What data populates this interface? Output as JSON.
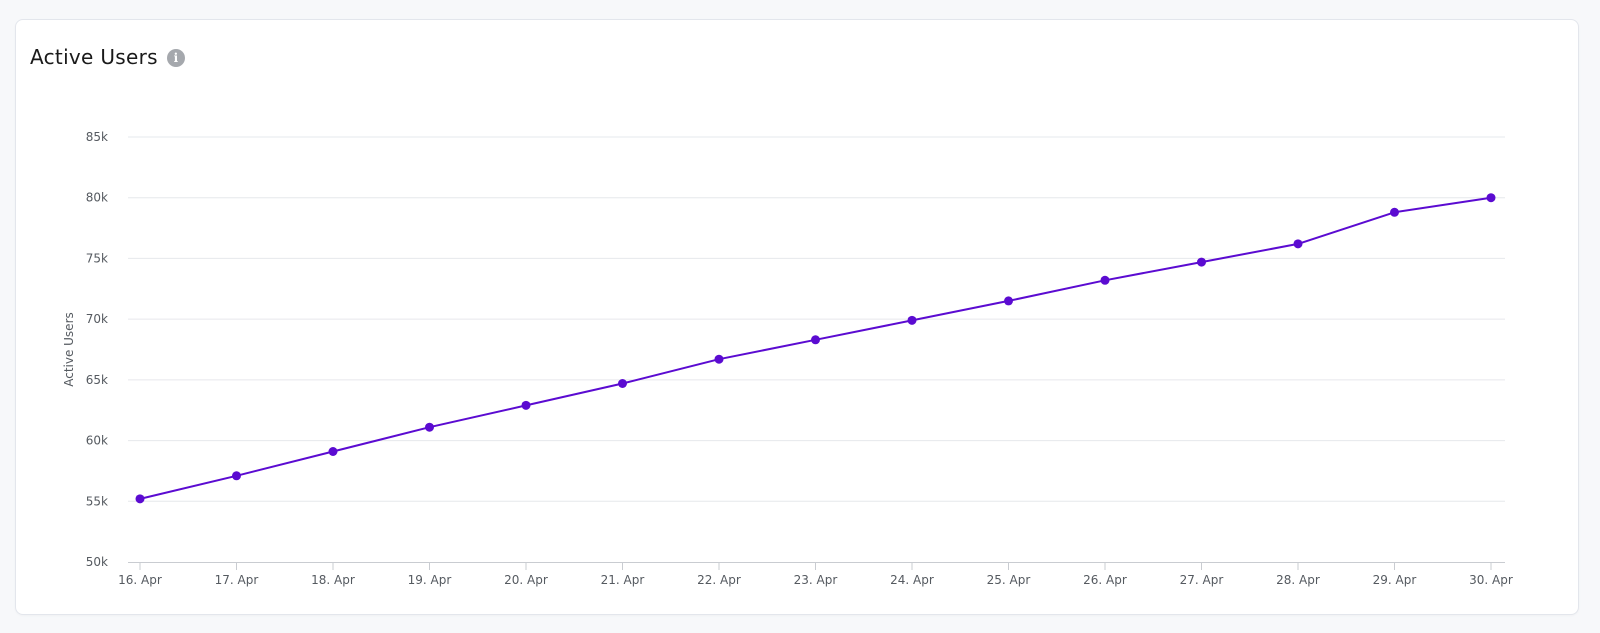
{
  "card": {
    "title": "Active Users",
    "info_icon": "info-icon"
  },
  "chart_data": {
    "type": "line",
    "title": "Active Users",
    "ylabel": "Active Users",
    "xlabel": "",
    "categories": [
      "16. Apr",
      "17. Apr",
      "18. Apr",
      "19. Apr",
      "20. Apr",
      "21. Apr",
      "22. Apr",
      "23. Apr",
      "24. Apr",
      "25. Apr",
      "26. Apr",
      "27. Apr",
      "28. Apr",
      "29. Apr",
      "30. Apr"
    ],
    "series": [
      {
        "values": [
          55200,
          57100,
          59100,
          61100,
          62900,
          64700,
          66700,
          68300,
          69900,
          71500,
          73200,
          74700,
          76200,
          78800,
          80000
        ],
        "color": "#5b0bd1"
      }
    ],
    "ylim": [
      50000,
      85000
    ],
    "yticks": [
      50000,
      55000,
      60000,
      65000,
      70000,
      75000,
      80000,
      85000
    ],
    "ytick_labels": [
      "50k",
      "55k",
      "60k",
      "65k",
      "70k",
      "75k",
      "80k",
      "85k"
    ],
    "grid": true,
    "legend": "none"
  }
}
